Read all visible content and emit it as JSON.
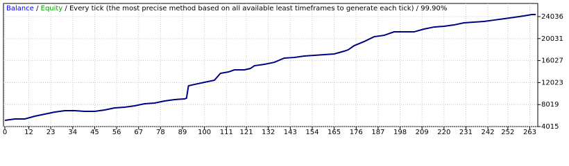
{
  "chart_data": {
    "type": "line",
    "title": {
      "balance": "Balance",
      "equity": "Equity",
      "separator": " / ",
      "method": "Every tick (the most precise method based on all available least timeframes to generate each tick)",
      "quality": "99.90%"
    },
    "title_colors": {
      "balance": "#0000ff",
      "equity": "#00a000",
      "text": "#000000"
    },
    "x": [
      0,
      5,
      10,
      15,
      20,
      25,
      30,
      35,
      40,
      45,
      50,
      55,
      60,
      65,
      70,
      75,
      80,
      85,
      90,
      91,
      92,
      95,
      100,
      105,
      108,
      112,
      115,
      120,
      123,
      125,
      130,
      135,
      140,
      145,
      150,
      155,
      160,
      165,
      170,
      172,
      175,
      180,
      185,
      190,
      195,
      200,
      205,
      210,
      215,
      220,
      225,
      230,
      235,
      240,
      245,
      250,
      255,
      260,
      264,
      266
    ],
    "series": [
      {
        "name": "Balance",
        "color": "#000080",
        "values": [
          5150,
          5400,
          5400,
          5900,
          6280,
          6660,
          6910,
          6910,
          6780,
          6780,
          7040,
          7410,
          7540,
          7790,
          8170,
          8300,
          8670,
          8930,
          9050,
          9180,
          11440,
          11690,
          12070,
          12450,
          13710,
          13960,
          14340,
          14340,
          14590,
          15090,
          15350,
          15720,
          16480,
          16600,
          16860,
          16980,
          17110,
          17240,
          17740,
          17990,
          18740,
          19500,
          20380,
          20630,
          21260,
          21260,
          21260,
          21770,
          22140,
          22270,
          22520,
          22900,
          23030,
          23150,
          23400,
          23650,
          23900,
          24160,
          24410,
          24410
        ]
      }
    ],
    "xlim": [
      0,
      267
    ],
    "xticks": [
      0,
      12,
      23,
      34,
      45,
      56,
      67,
      78,
      89,
      100,
      111,
      121,
      132,
      143,
      154,
      165,
      176,
      187,
      198,
      209,
      220,
      231,
      242,
      252,
      263
    ],
    "ylim": [
      4015,
      26430
    ],
    "yticks": [
      4015,
      8019,
      12023,
      16027,
      20031,
      24036
    ],
    "grid": true
  }
}
